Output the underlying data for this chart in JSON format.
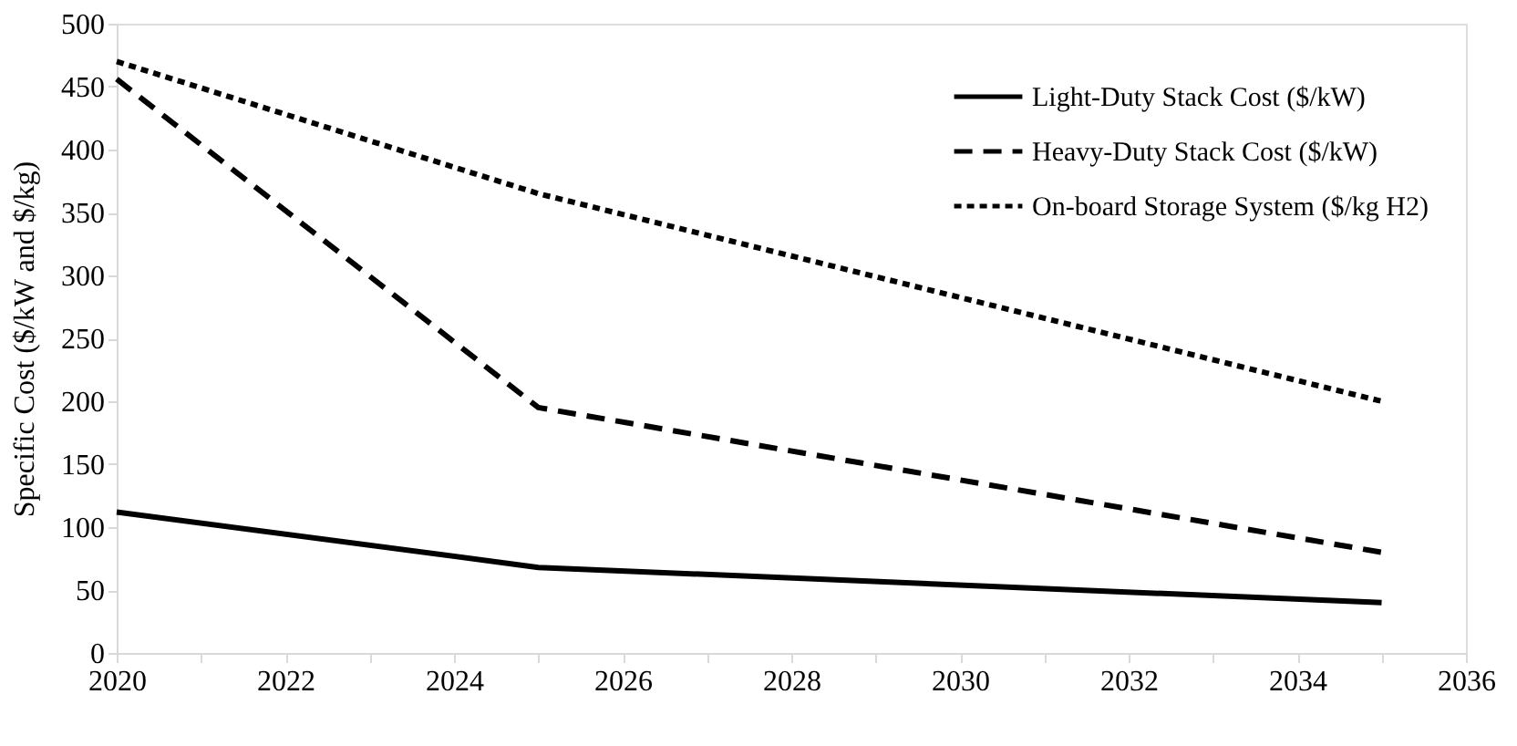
{
  "chart_data": {
    "type": "line",
    "ylabel": "Specific Cost ($/kW and $/kg)",
    "x": [
      2020,
      2025,
      2035
    ],
    "series": [
      {
        "name": "Light-Duty Stack Cost ($/kW)",
        "color": "#000000",
        "line_style": "solid",
        "values": [
          112,
          68,
          40
        ]
      },
      {
        "name": "Heavy-Duty Stack Cost ($/kW)",
        "color": "#000000",
        "line_style": "dashed",
        "values": [
          456,
          195,
          80
        ]
      },
      {
        "name": "On-board Storage System ($/kg H2)",
        "color": "#000000",
        "line_style": "dotted",
        "values": [
          470,
          365,
          200
        ]
      }
    ],
    "xlim": [
      2020,
      2036
    ],
    "xticks": [
      2020,
      {
        "value": 2021,
        "label": null
      },
      2022,
      {
        "value": 2023,
        "label": null
      },
      2024,
      {
        "value": 2025,
        "label": null
      },
      2026,
      {
        "value": 2027,
        "label": null
      },
      2028,
      {
        "value": 2029,
        "label": null
      },
      2030,
      {
        "value": 2031,
        "label": null
      },
      2032,
      {
        "value": 2033,
        "label": null
      },
      2034,
      {
        "value": 2035,
        "label": null
      },
      2036
    ],
    "ylim": [
      0,
      500
    ],
    "yticks": [
      0,
      50,
      100,
      150,
      200,
      250,
      300,
      350,
      400,
      450,
      500
    ],
    "grid": false,
    "legend": "top right",
    "marker": "none"
  }
}
